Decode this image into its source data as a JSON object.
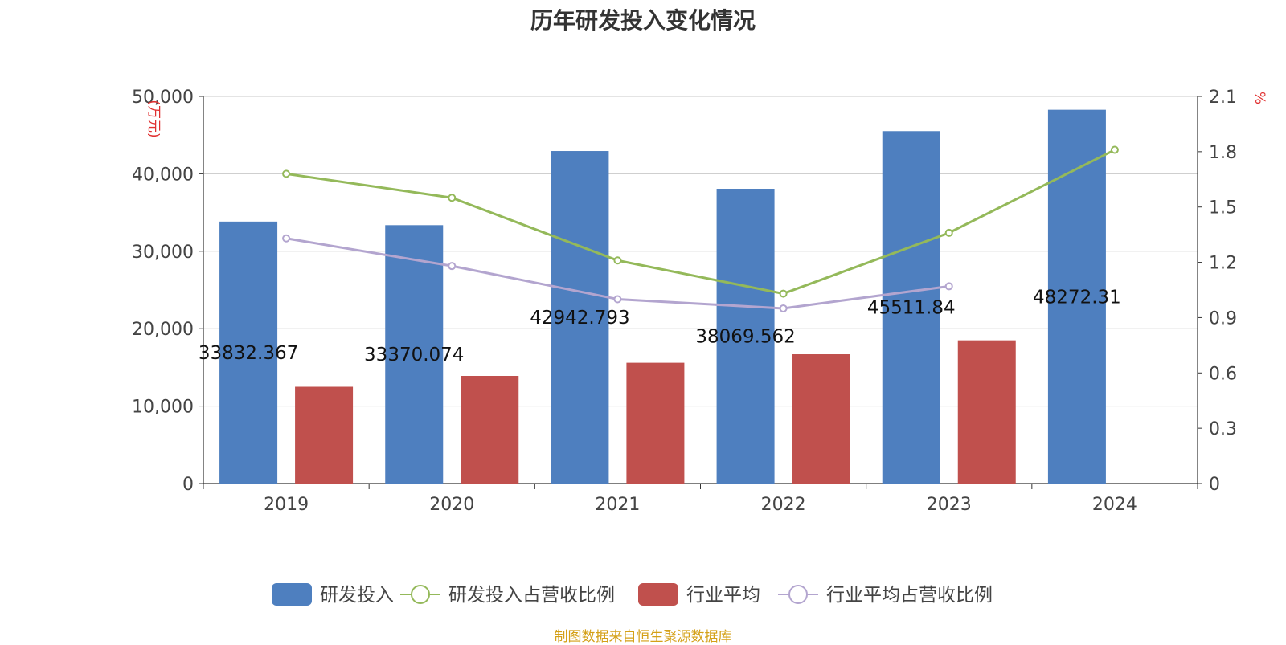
{
  "chart_data": {
    "type": "bar",
    "title": "历年研发投入变化情况",
    "categories": [
      "2019",
      "2020",
      "2021",
      "2022",
      "2023",
      "2024"
    ],
    "y_left": {
      "unit": "(万元)",
      "min": 0,
      "max": 50000,
      "ticks": [
        "0",
        "10,000",
        "20,000",
        "30,000",
        "40,000",
        "50,000"
      ]
    },
    "y_right": {
      "unit": "%",
      "min": 0,
      "max": 2.1,
      "ticks": [
        "0",
        "0.3",
        "0.6",
        "0.9",
        "1.2",
        "1.5",
        "1.8",
        "2.1"
      ]
    },
    "series": [
      {
        "name": "研发投入",
        "type": "bar",
        "axis": "left",
        "color": "#4e7fbf",
        "values": [
          33832.367,
          33370.074,
          42942.793,
          38069.562,
          45511.84,
          48272.31
        ],
        "labels": [
          "33832.367",
          "33370.074",
          "42942.793",
          "38069.562",
          "45511.84",
          "48272.31"
        ]
      },
      {
        "name": "研发投入占营收比例",
        "type": "line",
        "axis": "right",
        "color": "#94b95a",
        "values": [
          1.68,
          1.55,
          1.21,
          1.03,
          1.36,
          1.81
        ]
      },
      {
        "name": "行业平均",
        "type": "bar",
        "axis": "left",
        "color": "#c0504d",
        "values": [
          12500,
          13900,
          15600,
          16700,
          18500,
          null
        ]
      },
      {
        "name": "行业平均占营收比例",
        "type": "line",
        "axis": "right",
        "color": "#b3a5cf",
        "values": [
          1.33,
          1.18,
          1.0,
          0.95,
          1.07,
          null
        ]
      }
    ],
    "grid": true,
    "legend_position": "bottom-center"
  },
  "footer": {
    "source": "制图数据来自恒生聚源数据库"
  }
}
